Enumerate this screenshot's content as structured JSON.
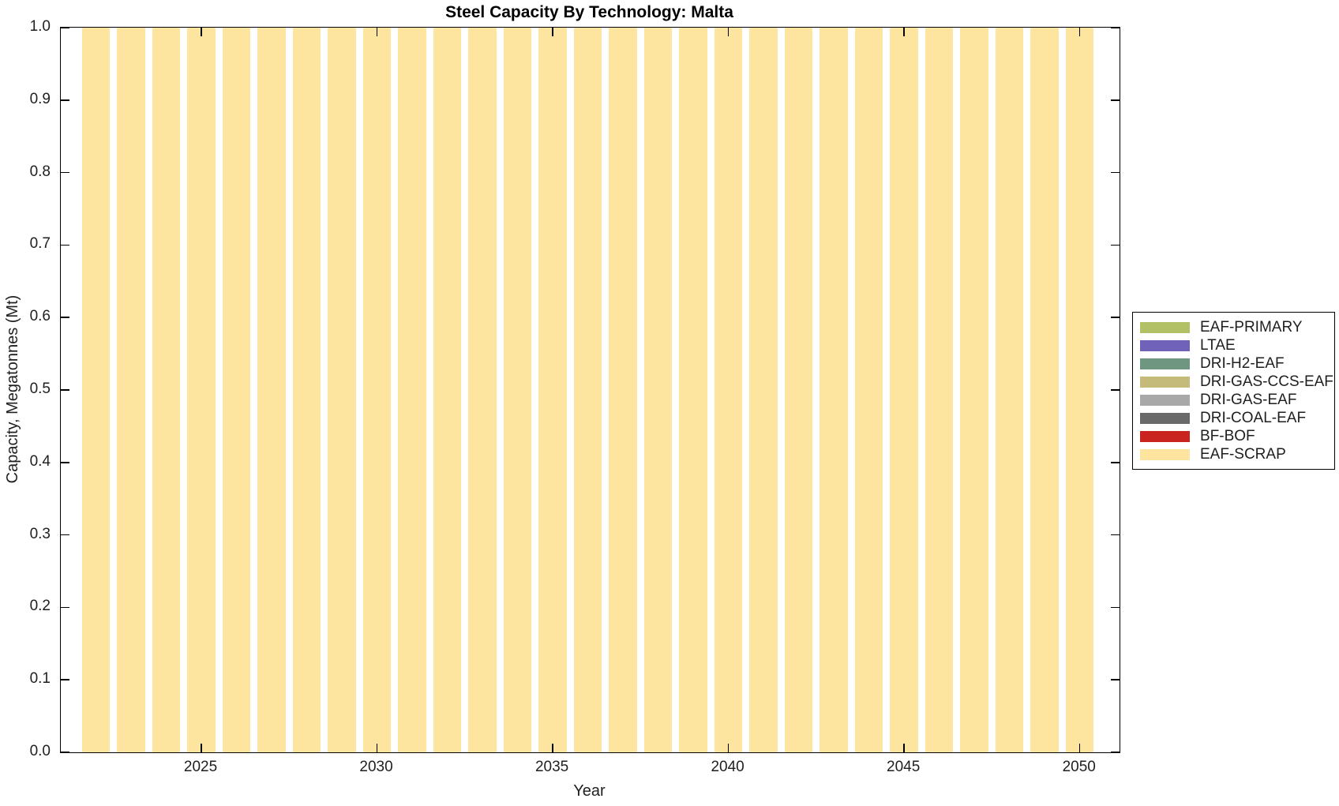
{
  "figure": {
    "title": "Steel Capacity By Technology: Malta"
  },
  "chart_data": {
    "type": "bar",
    "stacked": true,
    "title": "Steel Capacity By Technology: Malta",
    "xlabel": "Year",
    "ylabel": "Capacity, Megatonnes (Mt)",
    "xlim": [
      2021,
      2051.13
    ],
    "ylim": [
      0,
      1
    ],
    "bar_rel_width": 0.8,
    "grid": false,
    "box": true,
    "tick_dir": "in",
    "legend_position": "outside-right",
    "axis_color": "#000000",
    "text_color": "#1f1f1f",
    "x_ticks": [
      {
        "value": 2025,
        "label": "2025"
      },
      {
        "value": 2030,
        "label": "2030"
      },
      {
        "value": 2035,
        "label": "2035"
      },
      {
        "value": 2040,
        "label": "2040"
      },
      {
        "value": 2045,
        "label": "2045"
      },
      {
        "value": 2050,
        "label": "2050"
      }
    ],
    "y_ticks": [
      {
        "value": 0.0,
        "label": "0.0"
      },
      {
        "value": 0.1,
        "label": "0.1"
      },
      {
        "value": 0.2,
        "label": "0.2"
      },
      {
        "value": 0.3,
        "label": "0.3"
      },
      {
        "value": 0.4,
        "label": "0.4"
      },
      {
        "value": 0.5,
        "label": "0.5"
      },
      {
        "value": 0.6,
        "label": "0.6"
      },
      {
        "value": 0.7,
        "label": "0.7"
      },
      {
        "value": 0.8,
        "label": "0.8"
      },
      {
        "value": 0.9,
        "label": "0.9"
      },
      {
        "value": 1.0,
        "label": "1.0"
      }
    ],
    "x": [
      2022,
      2023,
      2024,
      2025,
      2026,
      2027,
      2028,
      2029,
      2030,
      2031,
      2032,
      2033,
      2034,
      2035,
      2036,
      2037,
      2038,
      2039,
      2040,
      2041,
      2042,
      2043,
      2044,
      2045,
      2046,
      2047,
      2048,
      2049,
      2050
    ],
    "series": [
      {
        "name": "EAF-PRIMARY",
        "color": "#b3c166",
        "values": [
          0,
          0,
          0,
          0,
          0,
          0,
          0,
          0,
          0,
          0,
          0,
          0,
          0,
          0,
          0,
          0,
          0,
          0,
          0,
          0,
          0,
          0,
          0,
          0,
          0,
          0,
          0,
          0,
          0
        ]
      },
      {
        "name": "LTAE",
        "color": "#6f62b8",
        "values": [
          0,
          0,
          0,
          0,
          0,
          0,
          0,
          0,
          0,
          0,
          0,
          0,
          0,
          0,
          0,
          0,
          0,
          0,
          0,
          0,
          0,
          0,
          0,
          0,
          0,
          0,
          0,
          0,
          0
        ]
      },
      {
        "name": "DRI-H2-EAF",
        "color": "#6e9681",
        "values": [
          0,
          0,
          0,
          0,
          0,
          0,
          0,
          0,
          0,
          0,
          0,
          0,
          0,
          0,
          0,
          0,
          0,
          0,
          0,
          0,
          0,
          0,
          0,
          0,
          0,
          0,
          0,
          0,
          0
        ]
      },
      {
        "name": "DRI-GAS-CCS-EAF",
        "color": "#c4ba79",
        "values": [
          0,
          0,
          0,
          0,
          0,
          0,
          0,
          0,
          0,
          0,
          0,
          0,
          0,
          0,
          0,
          0,
          0,
          0,
          0,
          0,
          0,
          0,
          0,
          0,
          0,
          0,
          0,
          0,
          0
        ]
      },
      {
        "name": "DRI-GAS-EAF",
        "color": "#a8a8a8",
        "values": [
          0,
          0,
          0,
          0,
          0,
          0,
          0,
          0,
          0,
          0,
          0,
          0,
          0,
          0,
          0,
          0,
          0,
          0,
          0,
          0,
          0,
          0,
          0,
          0,
          0,
          0,
          0,
          0,
          0
        ]
      },
      {
        "name": "DRI-COAL-EAF",
        "color": "#6a6a6a",
        "values": [
          0,
          0,
          0,
          0,
          0,
          0,
          0,
          0,
          0,
          0,
          0,
          0,
          0,
          0,
          0,
          0,
          0,
          0,
          0,
          0,
          0,
          0,
          0,
          0,
          0,
          0,
          0,
          0,
          0
        ]
      },
      {
        "name": "BF-BOF",
        "color": "#ca2420",
        "values": [
          0,
          0,
          0,
          0,
          0,
          0,
          0,
          0,
          0,
          0,
          0,
          0,
          0,
          0,
          0,
          0,
          0,
          0,
          0,
          0,
          0,
          0,
          0,
          0,
          0,
          0,
          0,
          0,
          0
        ]
      },
      {
        "name": "EAF-SCRAP",
        "color": "#fde5a0",
        "values": [
          1,
          1,
          1,
          1,
          1,
          1,
          1,
          1,
          1,
          1,
          1,
          1,
          1,
          1,
          1,
          1,
          1,
          1,
          1,
          1,
          1,
          1,
          1,
          1,
          1,
          1,
          1,
          1,
          1
        ]
      }
    ]
  }
}
